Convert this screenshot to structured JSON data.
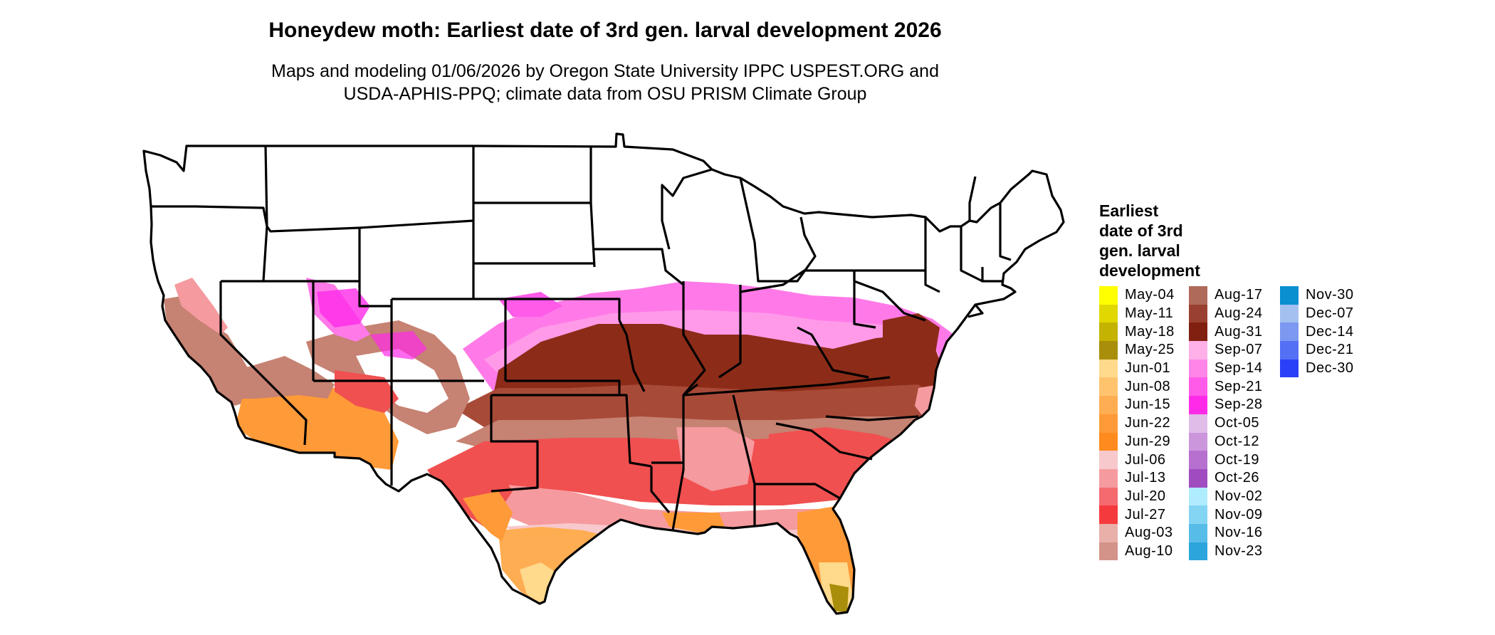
{
  "title": "Honeydew moth: Earliest date of 3rd gen. larval development 2026",
  "subtitle_line1": "Maps and modeling 01/06/2026 by Oregon State University IPPC USPEST.ORG and",
  "subtitle_line2": "USDA-APHIS-PPQ; climate data from OSU PRISM Climate Group",
  "legend": {
    "title_lines": [
      "Earliest",
      "date of 3rd",
      "gen. larval",
      "development"
    ],
    "columns": [
      [
        {
          "label": "May-04",
          "color": "#ffff00"
        },
        {
          "label": "May-11",
          "color": "#e0d800"
        },
        {
          "label": "May-18",
          "color": "#c4b300"
        },
        {
          "label": "May-25",
          "color": "#a88e0a"
        },
        {
          "label": "Jun-01",
          "color": "#ffd98c"
        },
        {
          "label": "Jun-08",
          "color": "#ffc36e"
        },
        {
          "label": "Jun-15",
          "color": "#ffad52"
        },
        {
          "label": "Jun-22",
          "color": "#ff9a38"
        },
        {
          "label": "Jun-29",
          "color": "#ff8a1e"
        },
        {
          "label": "Jul-06",
          "color": "#f7c9cd"
        },
        {
          "label": "Jul-13",
          "color": "#f59a9e"
        },
        {
          "label": "Jul-20",
          "color": "#f56a6e"
        },
        {
          "label": "Jul-27",
          "color": "#f53a3e"
        },
        {
          "label": "Aug-03",
          "color": "#e8b0a8"
        },
        {
          "label": "Aug-10",
          "color": "#d49388"
        }
      ],
      [
        {
          "label": "Aug-17",
          "color": "#b06a5a"
        },
        {
          "label": "Aug-24",
          "color": "#9a4030"
        },
        {
          "label": "Aug-31",
          "color": "#802010"
        },
        {
          "label": "Sep-07",
          "color": "#ffb0e8"
        },
        {
          "label": "Sep-14",
          "color": "#ff85e8"
        },
        {
          "label": "Sep-21",
          "color": "#ff5ae8"
        },
        {
          "label": "Sep-28",
          "color": "#ff2ae8"
        },
        {
          "label": "Oct-05",
          "color": "#e0bce8"
        },
        {
          "label": "Oct-12",
          "color": "#cc96dc"
        },
        {
          "label": "Oct-19",
          "color": "#b870d0"
        },
        {
          "label": "Oct-26",
          "color": "#a04cc0"
        },
        {
          "label": "Nov-02",
          "color": "#b0ecff"
        },
        {
          "label": "Nov-09",
          "color": "#84d4f4"
        },
        {
          "label": "Nov-16",
          "color": "#58bce8"
        },
        {
          "label": "Nov-23",
          "color": "#2ca4dc"
        }
      ],
      [
        {
          "label": "Nov-30",
          "color": "#0a90d0"
        },
        {
          "label": "Dec-07",
          "color": "#a4c0f0"
        },
        {
          "label": "Dec-14",
          "color": "#7c98f0"
        },
        {
          "label": "Dec-21",
          "color": "#5470f4"
        },
        {
          "label": "Dec-30",
          "color": "#2a40f8"
        }
      ]
    ]
  }
}
